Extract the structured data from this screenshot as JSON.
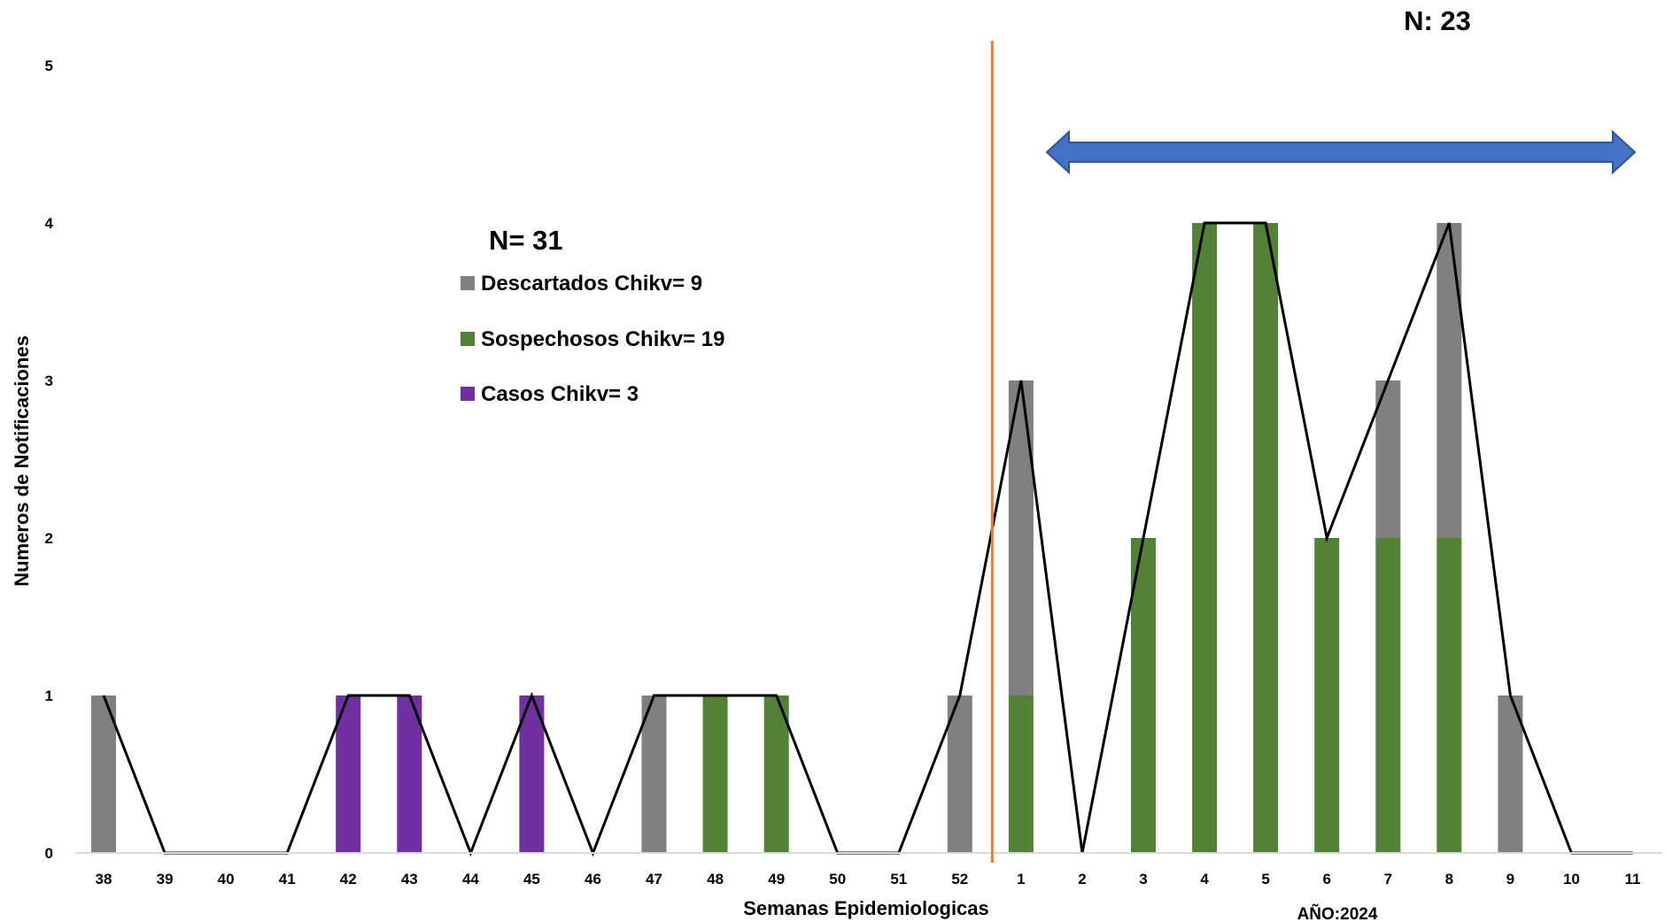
{
  "chart_data": {
    "type": "bar",
    "title": "",
    "xlabel": "Semanas Epidemiologicas",
    "ylabel": "Numeros de Notificaciones",
    "ylim": [
      0,
      5
    ],
    "yticks": [
      "0",
      "1",
      "2",
      "3",
      "4",
      "5"
    ],
    "grid": false,
    "stacked": true,
    "categories": [
      "38",
      "39",
      "40",
      "41",
      "42",
      "43",
      "44",
      "45",
      "46",
      "47",
      "48",
      "49",
      "50",
      "51",
      "52",
      "1",
      "2",
      "3",
      "4",
      "5",
      "6",
      "7",
      "8",
      "9",
      "10",
      "11"
    ],
    "series": [
      {
        "name": "Sospechosos Chikv= 19",
        "color": "#538135",
        "values": [
          0,
          0,
          0,
          0,
          0,
          0,
          0,
          0,
          0,
          0,
          1,
          1,
          0,
          0,
          0,
          1,
          0,
          2,
          4,
          4,
          2,
          2,
          2,
          0,
          0,
          0
        ]
      },
      {
        "name": "Descartados Chikv= 9",
        "color": "#808080",
        "values": [
          1,
          0,
          0,
          0,
          0,
          0,
          0,
          0,
          0,
          1,
          0,
          0,
          0,
          0,
          1,
          2,
          0,
          0,
          0,
          0,
          0,
          1,
          2,
          1,
          0,
          0
        ]
      },
      {
        "name": "Casos Chikv= 3",
        "color": "#7030A0",
        "values": [
          0,
          0,
          0,
          0,
          1,
          1,
          0,
          1,
          0,
          0,
          0,
          0,
          0,
          0,
          0,
          0,
          0,
          0,
          0,
          0,
          0,
          0,
          0,
          0,
          0,
          0
        ]
      }
    ],
    "total_line": {
      "color": "#000000",
      "values": [
        1,
        0,
        0,
        0,
        1,
        1,
        0,
        1,
        0,
        1,
        1,
        1,
        0,
        0,
        1,
        3,
        0,
        2,
        4,
        4,
        2,
        3,
        4,
        1,
        0,
        0
      ]
    },
    "legend": {
      "placement": "center-left",
      "title": "N= 31",
      "items": [
        {
          "label": "Descartados Chikv= 9",
          "color": "#808080"
        },
        {
          "label": "Sospechosos Chikv= 19",
          "color": "#538135"
        },
        {
          "label": "Casos Chikv= 3",
          "color": "#7030A0"
        }
      ]
    },
    "annotations": {
      "divider_color": "#ED7D31",
      "year_label": "AÑO:2024",
      "arrow_label": "N: 23",
      "arrow_color": "#4472C4",
      "arrow_outline": "#2F5597"
    }
  }
}
